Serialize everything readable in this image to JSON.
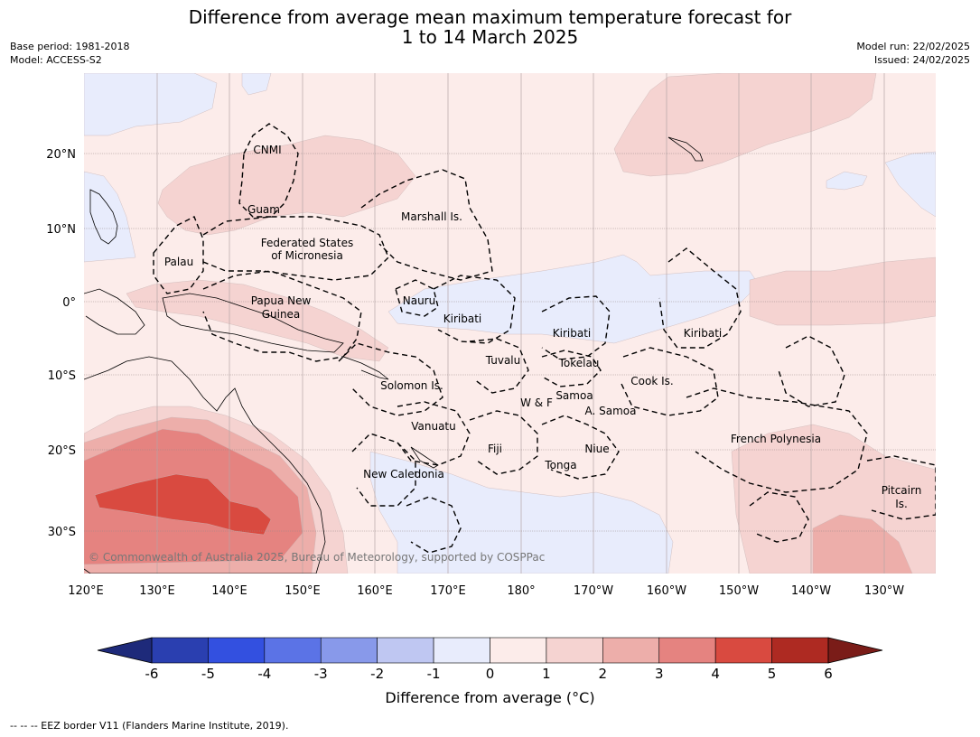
{
  "title": {
    "line1": "Difference from average mean maximum temperature forecast for",
    "line2": "1 to 14 March 2025"
  },
  "meta": {
    "base_period": "Base period: 1981-2018",
    "model": "Model: ACCESS-S2",
    "model_run": "Model run: 22/02/2025",
    "issued": "Issued: 24/02/2025"
  },
  "axes": {
    "lon_ticks": [
      "120°E",
      "130°E",
      "140°E",
      "150°E",
      "160°E",
      "170°E",
      "180°",
      "170°W",
      "160°W",
      "150°W",
      "140°W",
      "130°W"
    ],
    "lat_ticks": [
      "20°N",
      "10°N",
      "0°",
      "10°S",
      "20°S",
      "30°S"
    ]
  },
  "map_labels": {
    "cnmi": "CNMI",
    "guam": "Guam",
    "marshall": "Marshall Is.",
    "fsm_line1": "Federated States",
    "fsm_line2": "of Micronesia",
    "palau": "Palau",
    "png_line1": "Papua New",
    "png_line2": "Guinea",
    "nauru": "Nauru",
    "kiribati_w": "Kiribati",
    "kiribati_c": "Kiribati",
    "kiribati_e": "Kiribati",
    "tuvalu": "Tuvalu",
    "tokelau": "Tokelau",
    "solomon": "Solomon Is.",
    "cook": "Cook Is.",
    "samoa": "Samoa",
    "wf": "W & F",
    "asamoa": "A. Samoa",
    "vanuatu": "Vanuatu",
    "fiji": "Fiji",
    "niue": "Niue",
    "tonga": "Tonga",
    "french_polynesia": "French Polynesia",
    "new_caledonia": "New Caledonia",
    "pitcairn_line1": "Pitcairn",
    "pitcairn_line2": "Is."
  },
  "copyright": "© Commonwealth of Australia 2025, Bureau of Meteorology, supported by COSPPac",
  "colorbar": {
    "ticks": [
      "-6",
      "-5",
      "-4",
      "-3",
      "-2",
      "-1",
      "0",
      "1",
      "2",
      "3",
      "4",
      "5",
      "6"
    ],
    "colors": [
      "#2a3fb0",
      "#3350e0",
      "#5b73e6",
      "#8899ea",
      "#bfc7f2",
      "#e8ecfc",
      "#fcecea",
      "#f5d3d1",
      "#edaeaa",
      "#e58380",
      "#d94a40",
      "#ae2a22"
    ],
    "under_color": "#1e2a7a",
    "over_color": "#7a1c18",
    "title": "Difference from average ($^\\circ$C)",
    "title_display": "Difference from average (°C)"
  },
  "footer": "--  --  -- EEZ border V11 (Flanders Marine Institute, 2019)."
}
